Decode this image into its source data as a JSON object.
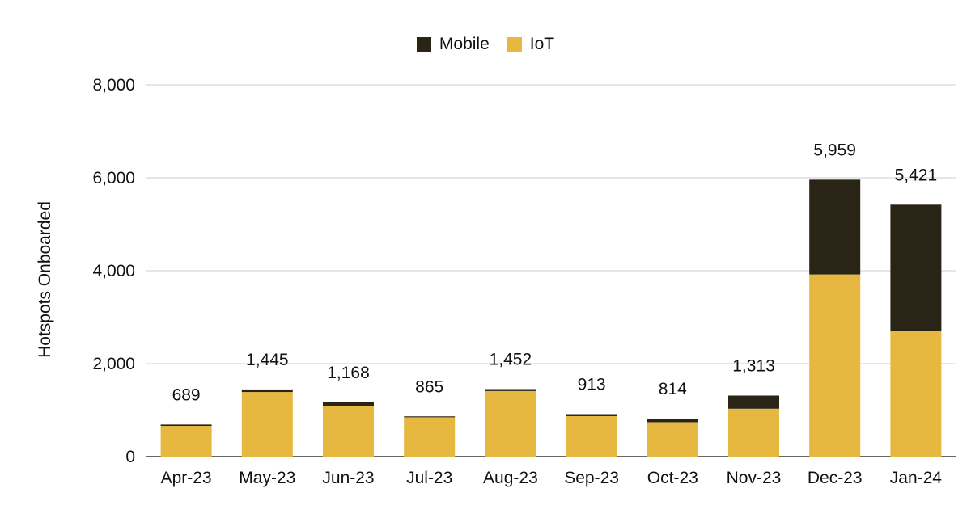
{
  "chart_data": {
    "type": "bar",
    "stacked": true,
    "title": "",
    "xlabel": "",
    "ylabel": "Hotspots Onboarded",
    "ylim": [
      0,
      8000
    ],
    "yticks": [
      0,
      2000,
      4000,
      6000,
      8000
    ],
    "ytick_labels": [
      "0",
      "2,000",
      "4,000",
      "6,000",
      "8,000"
    ],
    "grid": true,
    "legend_position": "top-center",
    "categories": [
      "Apr-23",
      "May-23",
      "Jun-23",
      "Jul-23",
      "Aug-23",
      "Sep-23",
      "Oct-23",
      "Nov-23",
      "Dec-23",
      "Jan-24"
    ],
    "series": [
      {
        "name": "IoT",
        "color": "#e6b840",
        "values": [
          660,
          1390,
          1080,
          845,
          1410,
          870,
          740,
          1030,
          3920,
          2710
        ]
      },
      {
        "name": "Mobile",
        "color": "#2a2417",
        "values": [
          29,
          55,
          88,
          20,
          42,
          43,
          74,
          283,
          2039,
          2711
        ]
      }
    ],
    "totals": [
      689,
      1445,
      1168,
      865,
      1452,
      913,
      814,
      1313,
      5959,
      5421
    ],
    "total_labels": [
      "689",
      "1,445",
      "1,168",
      "865",
      "1,452",
      "913",
      "814",
      "1,313",
      "5,959",
      "5,421"
    ]
  },
  "legend": {
    "items": [
      {
        "label": "Mobile",
        "color": "#2a2417"
      },
      {
        "label": "IoT",
        "color": "#e6b840"
      }
    ]
  }
}
